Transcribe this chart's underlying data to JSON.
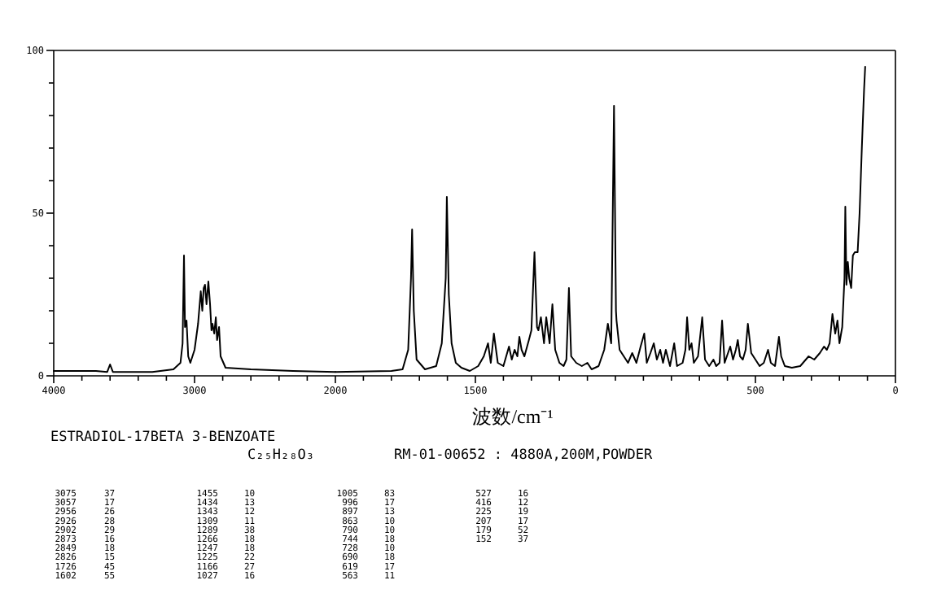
{
  "chart_data": [
    {
      "type": "line",
      "title": "ESTRADIOL-17BETA 3-BENZOATE",
      "subtitle": "C₂₅H₂₈O₃",
      "x": [
        4000,
        3700,
        3620,
        3600,
        3580,
        3300,
        3150,
        3100,
        3085,
        3075,
        3068,
        3057,
        3045,
        3030,
        3000,
        2975,
        2956,
        2945,
        2935,
        2926,
        2915,
        2902,
        2890,
        2880,
        2873,
        2860,
        2849,
        2840,
        2826,
        2815,
        2780,
        2600,
        2300,
        2000
      ],
      "series": [
        {
          "color": "#000000",
          "values": [
            1.5,
            1.5,
            1.2,
            3.5,
            1.2,
            1.2,
            2,
            4,
            10,
            37,
            15,
            17,
            6,
            4,
            8,
            16,
            26,
            20,
            27,
            28,
            22,
            29,
            22,
            14,
            16,
            13,
            18,
            11,
            15,
            6,
            2.5,
            2,
            1.5,
            1.2
          ]
        }
      ],
      "xlim": [
        4000,
        2000
      ],
      "ylim": [
        0,
        100
      ],
      "xticks": [
        4000,
        {
          "value": 3800,
          "label": null
        },
        {
          "value": 3600,
          "label": null
        },
        {
          "value": 3400,
          "label": null
        },
        {
          "value": 3200,
          "label": null
        },
        3000,
        {
          "value": 2800,
          "label": null
        },
        {
          "value": 2600,
          "label": null
        },
        {
          "value": 2400,
          "label": null
        },
        {
          "value": 2200,
          "label": null
        }
      ],
      "yticks": [
        0,
        {
          "value": 10,
          "label": null
        },
        {
          "value": 20,
          "label": null
        },
        {
          "value": 30,
          "label": null
        },
        {
          "value": 40,
          "label": null
        },
        50,
        {
          "value": 60,
          "label": null
        },
        {
          "value": 70,
          "label": null
        },
        {
          "value": 80,
          "label": null
        },
        {
          "value": 90,
          "label": null
        },
        100
      ]
    },
    {
      "type": "line",
      "xlabel": "波数/cm⁻¹",
      "annotations": [
        "RM-01-00652 : 4880A,200M,POWDER",
        "3075 37",
        "3057 17",
        "2956 26",
        "2926 28",
        "2902 29",
        "2873 16",
        "2849 18",
        "2826 15",
        "1726 45",
        "1602 55",
        "1455 10",
        "1434 13",
        "1343 12",
        "1309 11",
        "1289 38",
        "1266 18",
        "1247 18",
        "1225 22",
        "1166 27",
        "1027 16",
        "1005 83",
        "996 17",
        "897 13",
        "863 10",
        "790 10",
        "744 18",
        "728 10",
        "690 18",
        "619 17",
        "563 11",
        "527 16",
        "416 12",
        "225 19",
        "207 17",
        "179 52",
        "152 37"
      ],
      "x": [
        2000,
        1800,
        1760,
        1740,
        1730,
        1726,
        1720,
        1710,
        1680,
        1640,
        1620,
        1606,
        1602,
        1595,
        1585,
        1570,
        1550,
        1520,
        1490,
        1470,
        1455,
        1445,
        1434,
        1420,
        1400,
        1380,
        1370,
        1360,
        1350,
        1343,
        1335,
        1325,
        1309,
        1300,
        1289,
        1280,
        1275,
        1266,
        1255,
        1247,
        1235,
        1225,
        1215,
        1200,
        1185,
        1175,
        1166,
        1158,
        1140,
        1120,
        1100,
        1085,
        1060,
        1040,
        1027,
        1015,
        1005,
        998,
        996,
        985,
        970,
        955,
        940,
        925,
        910,
        897,
        888,
        875,
        863,
        852,
        840,
        830,
        820,
        805,
        790,
        780,
        760,
        750,
        744,
        736,
        728,
        720,
        705,
        690,
        680,
        665,
        650,
        640,
        628,
        619,
        610,
        590,
        580,
        570,
        563,
        555,
        545,
        535,
        527,
        515,
        500,
        485,
        470,
        455,
        445,
        430,
        416,
        408,
        395,
        370,
        340,
        310,
        290,
        270,
        255,
        245,
        235,
        225,
        220,
        215,
        207,
        200,
        190,
        182,
        179,
        175,
        170,
        165,
        158,
        152,
        145,
        135,
        128,
        120,
        112,
        108
      ],
      "series": [
        {
          "color": "#000000",
          "values": [
            1.2,
            1.5,
            2,
            8,
            30,
            45,
            20,
            5,
            2,
            3,
            10,
            30,
            55,
            25,
            10,
            4,
            2.5,
            1.5,
            3,
            6,
            10,
            4,
            13,
            4,
            3,
            9,
            5,
            8,
            6,
            12,
            8,
            6,
            11,
            14,
            38,
            15,
            14,
            18,
            10,
            18,
            10,
            22,
            8,
            4,
            3,
            5,
            27,
            6,
            4,
            3,
            4,
            2,
            3,
            8,
            16,
            10,
            83,
            20,
            17,
            8,
            6,
            4,
            7,
            4,
            9,
            13,
            4,
            7,
            10,
            5,
            8,
            4,
            8,
            3,
            10,
            3,
            4,
            8,
            18,
            8,
            10,
            4,
            6,
            18,
            5,
            3,
            5,
            3,
            4,
            17,
            4,
            9,
            5,
            8,
            11,
            6,
            5,
            8,
            16,
            7,
            5,
            3,
            4,
            8,
            4,
            3,
            12,
            6,
            3,
            2.5,
            3,
            6,
            5,
            7,
            9,
            8,
            10,
            19,
            16,
            13,
            17,
            10,
            15,
            30,
            52,
            28,
            35,
            30,
            27,
            37,
            38,
            38,
            50,
            70,
            88,
            95
          ]
        }
      ],
      "xlim": [
        2000,
        0
      ],
      "ylim": [
        0,
        100
      ],
      "tick_labels": "x",
      "xticks": [
        2000,
        {
          "value": 1900,
          "label": null
        },
        {
          "value": 1800,
          "label": null
        },
        {
          "value": 1700,
          "label": null
        },
        {
          "value": 1600,
          "label": null
        },
        1500,
        {
          "value": 1400,
          "label": null
        },
        {
          "value": 1300,
          "label": null
        },
        {
          "value": 1200,
          "label": null
        },
        {
          "value": 1100,
          "label": null
        },
        {
          "value": 1000,
          "label": null
        },
        {
          "value": 900,
          "label": null
        },
        {
          "value": 800,
          "label": null
        },
        {
          "value": 700,
          "label": null
        },
        {
          "value": 600,
          "label": null
        },
        500,
        {
          "value": 400,
          "label": null
        },
        {
          "value": 300,
          "label": null
        },
        {
          "value": 200,
          "label": null
        },
        {
          "value": 100,
          "label": null
        },
        0
      ]
    }
  ]
}
